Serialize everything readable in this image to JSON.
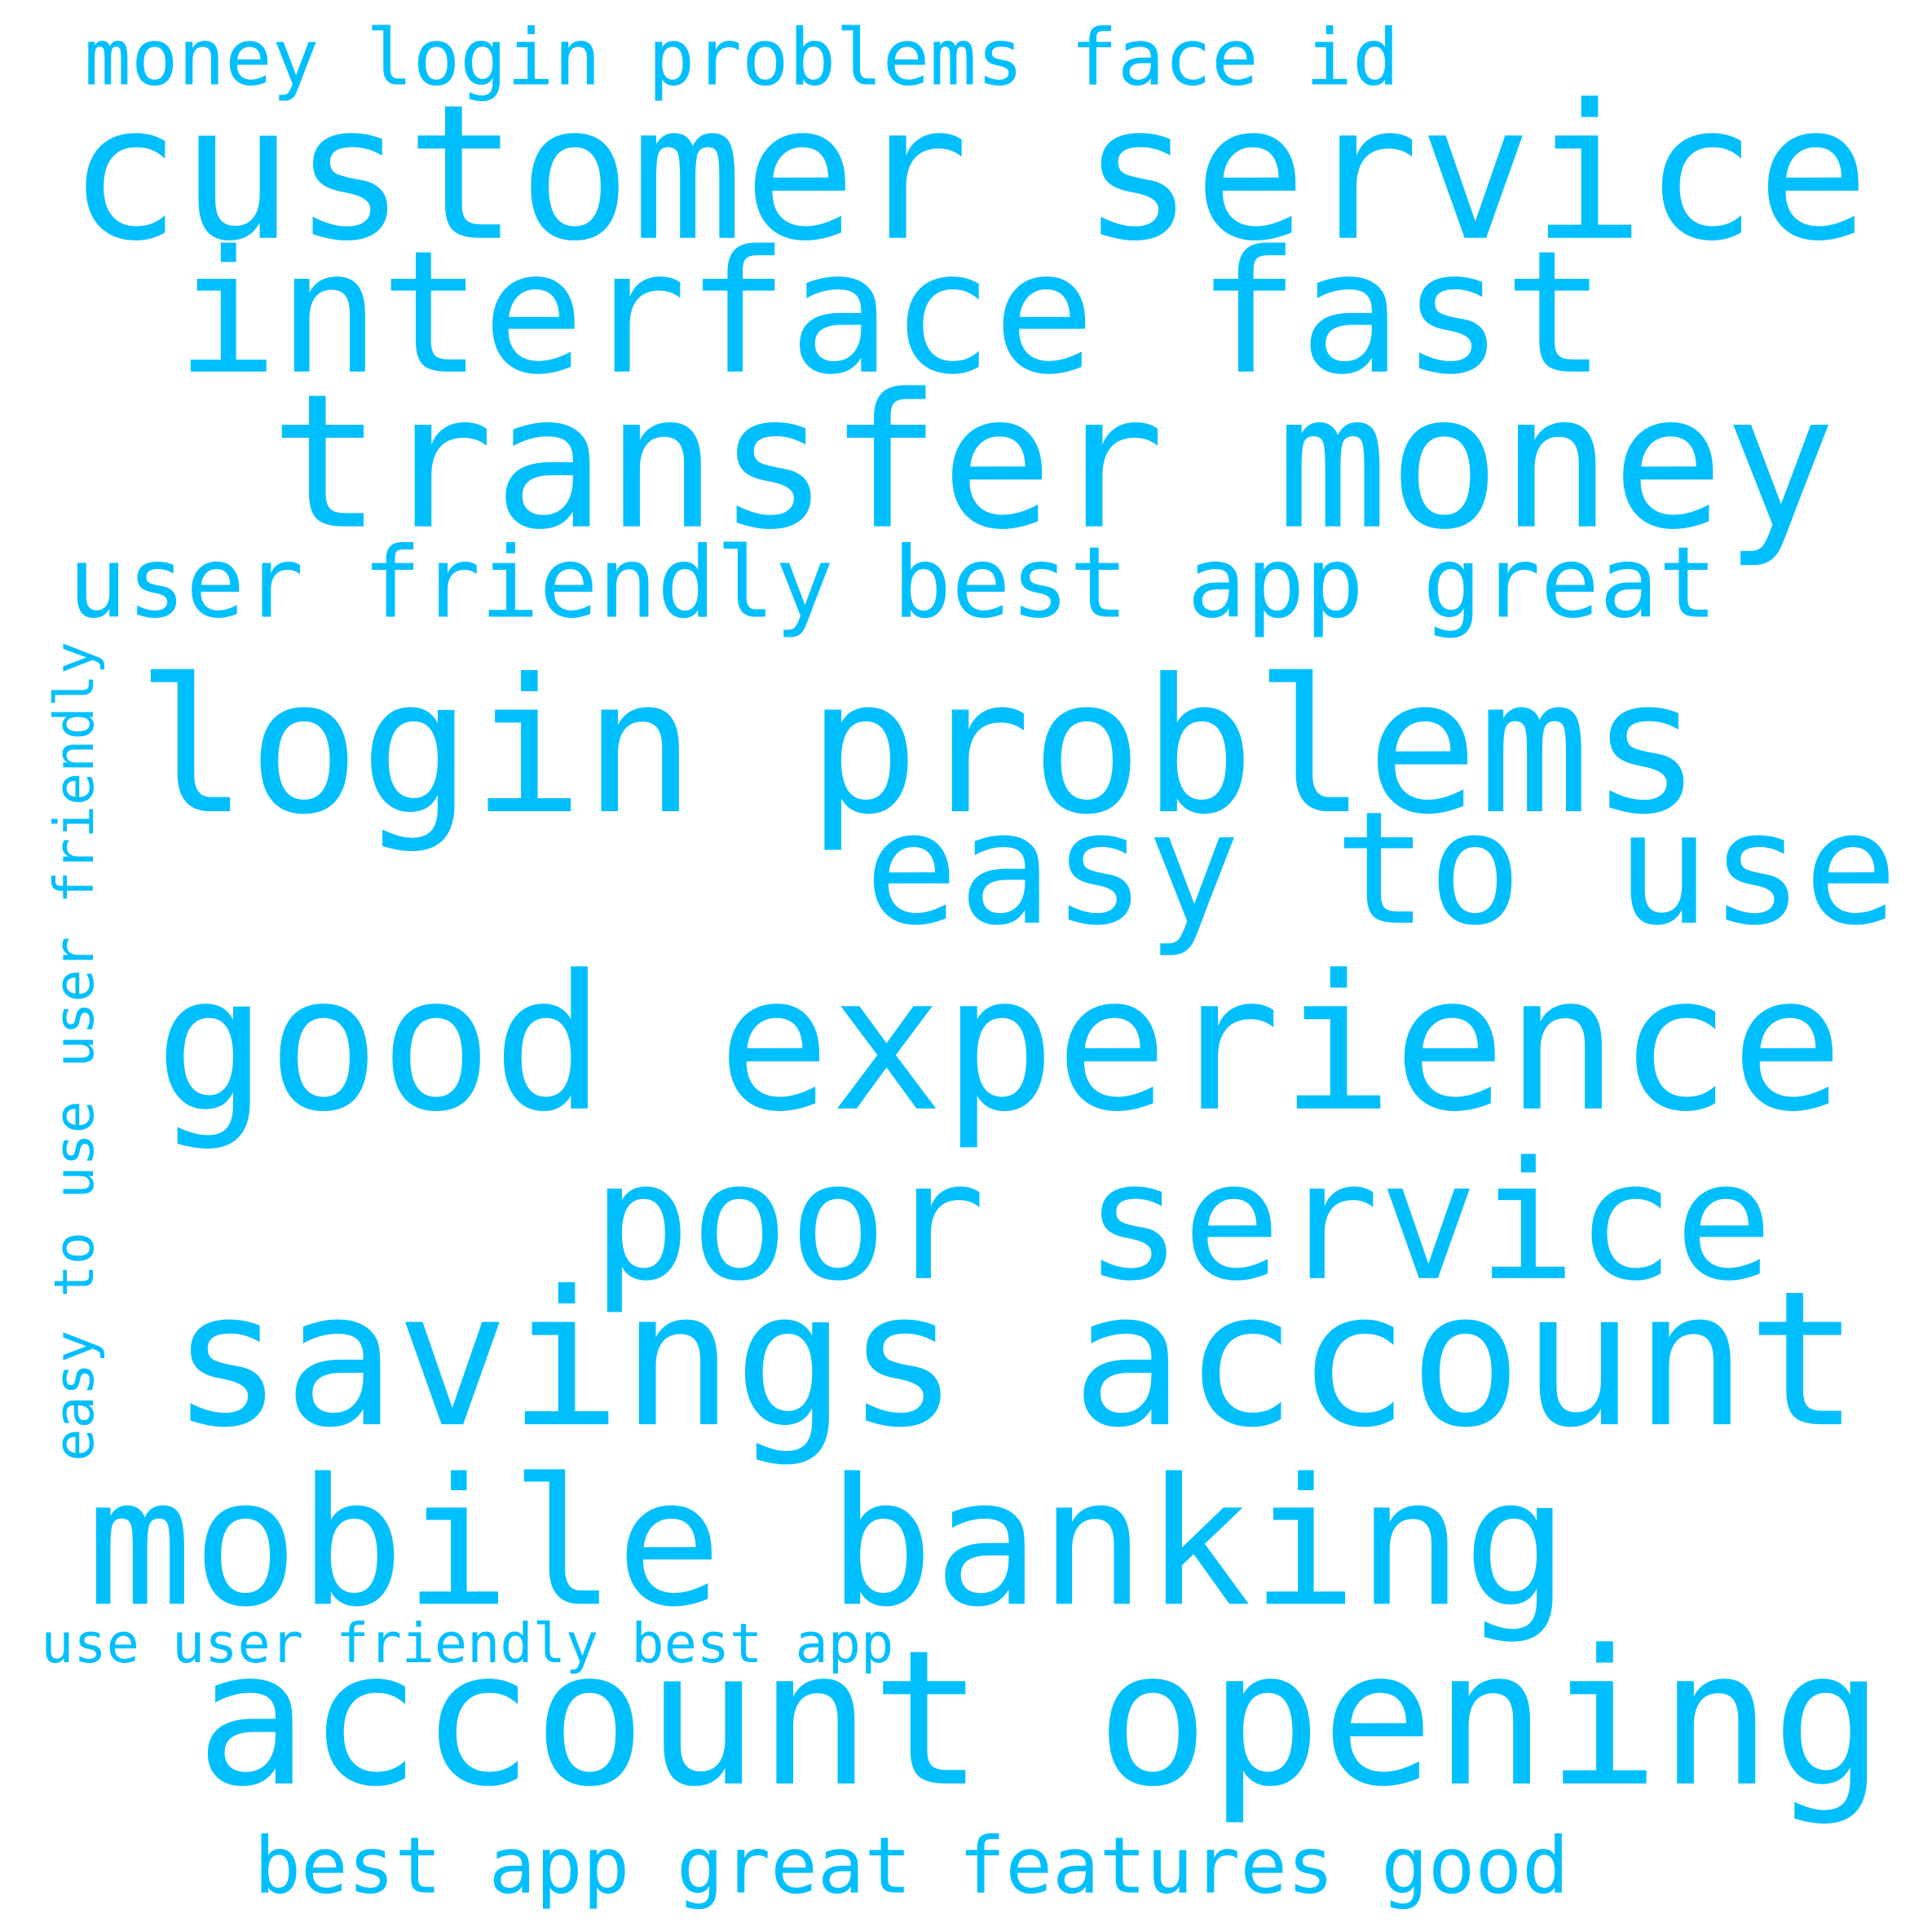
{
  "color": "#00bfff",
  "words": [
    "money login problems face id",
    "customer service",
    "interface fast",
    "transfer money",
    "user friendly best app great",
    "login problems",
    "easy to use",
    "good experience",
    "poor service",
    "savings account",
    "mobile banking",
    "use user friendly best app",
    "account opening",
    "best app great features good",
    "easy to use user friendly"
  ]
}
